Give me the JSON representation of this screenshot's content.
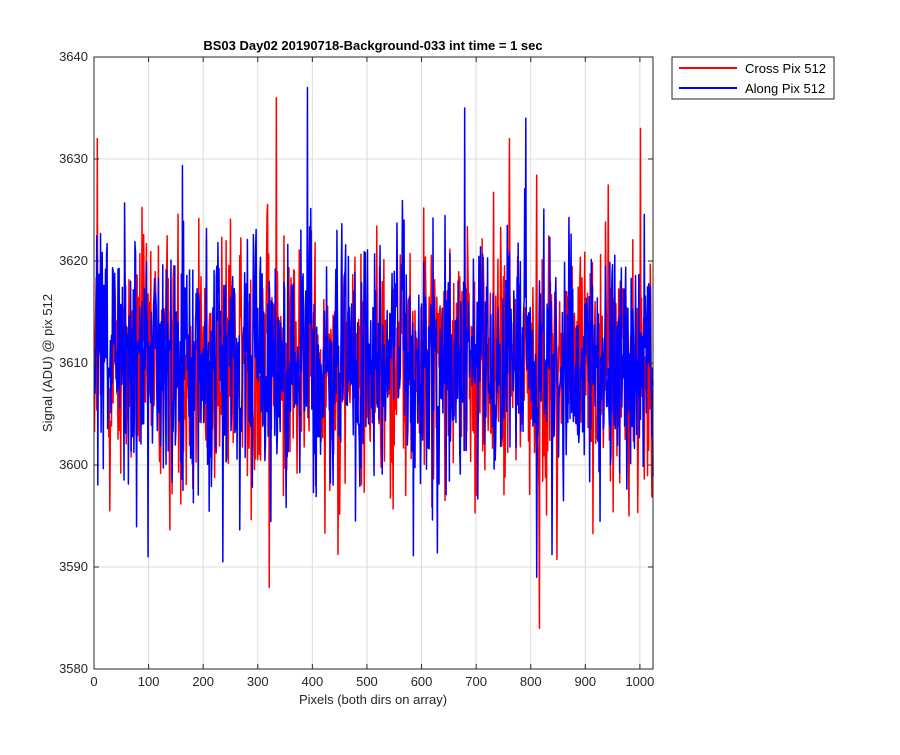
{
  "chart_data": {
    "type": "line",
    "title": "BS03 Day02 20190718-Background-033 int time = 1 sec",
    "xlabel": "Pixels (both dirs on array)",
    "ylabel": "Signal (ADU) @ pix 512",
    "xlim": [
      0,
      1024
    ],
    "ylim": [
      3580,
      3640
    ],
    "xticks": [
      0,
      100,
      200,
      300,
      400,
      500,
      600,
      700,
      800,
      900,
      1000
    ],
    "yticks": [
      3580,
      3590,
      3600,
      3610,
      3620,
      3630,
      3640
    ],
    "grid": true,
    "legend_position": "outside-top-right",
    "series": [
      {
        "name": "Cross Pix 512",
        "color": "#ff0000",
        "mean": 3610,
        "approx_range": [
          3584,
          3636
        ],
        "points": 1024,
        "notable_points": [
          [
            5,
            3632
          ],
          [
            333,
            3636
          ],
          [
            320,
            3588
          ],
          [
            815,
            3584
          ],
          [
            760,
            3632
          ],
          [
            1000,
            3633
          ]
        ]
      },
      {
        "name": "Along Pix 512",
        "color": "#0000ff",
        "mean": 3610,
        "approx_range": [
          3589,
          3637
        ],
        "points": 1024,
        "notable_points": [
          [
            390,
            3637
          ],
          [
            678,
            3635
          ],
          [
            790,
            3634
          ],
          [
            810,
            3589
          ],
          [
            98,
            3591
          ]
        ]
      }
    ]
  }
}
